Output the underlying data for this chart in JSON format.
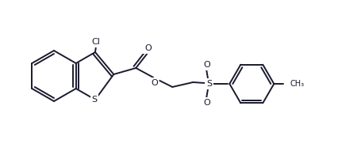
{
  "background_color": "#ffffff",
  "line_color": "#1a1a2e",
  "line_width": 1.4,
  "figsize": [
    4.56,
    1.96
  ],
  "dpi": 100,
  "label_Cl": "Cl",
  "label_O": "O",
  "label_S_thio": "S",
  "label_S_sulfonyl": "S",
  "label_O1": "O",
  "label_O2": "O",
  "label_CH3": "CH₃"
}
